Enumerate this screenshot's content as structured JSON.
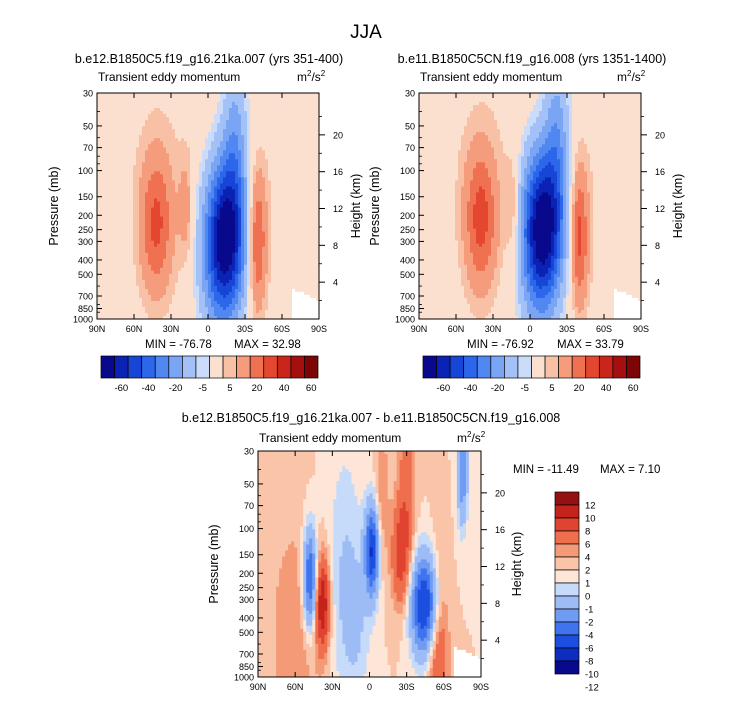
{
  "figure": {
    "title": "JJA"
  },
  "chart_data": [
    {
      "type": "heatmap",
      "title": "b.e12.B1850C5.f19_g16.21ka.007 (yrs 351-400)",
      "subtitle_left": "Transient eddy momentum",
      "units_base": "m",
      "units_exp1": "2",
      "units_mid": "/s",
      "units_exp2": "2",
      "ylabel": "Pressure (mb)",
      "ylabel_right": "Height (km)",
      "x_ticks": [
        "90N",
        "60N",
        "30N",
        "0",
        "30S",
        "60S",
        "90S"
      ],
      "y_ticks": [
        "30",
        "50",
        "70",
        "100",
        "150",
        "200",
        "250",
        "300",
        "400",
        "500",
        "700",
        "850",
        "1000"
      ],
      "y_ticks_right": [
        "20",
        "16",
        "12",
        "8",
        "4"
      ],
      "min_label": "MIN = -76.78",
      "max_label": "MAX = 32.98",
      "min": -76.78,
      "max": 32.98,
      "blobs": [
        {
          "lat": -14,
          "p": 290,
          "amp": -75,
          "slat": 11,
          "sp": 0.85
        },
        {
          "lat": -22,
          "p": 70,
          "amp": -22,
          "slat": 7,
          "sp": 1.1
        },
        {
          "lat": -5,
          "p": 500,
          "amp": -10,
          "slat": 10,
          "sp": 1.0
        },
        {
          "lat": 42,
          "p": 230,
          "amp": 30,
          "slat": 9,
          "sp": 0.75
        },
        {
          "lat": -40,
          "p": 300,
          "amp": 32,
          "slat": 5,
          "sp": 0.75
        },
        {
          "lat": 18,
          "p": 180,
          "amp": 12,
          "slat": 4,
          "sp": 0.55
        },
        {
          "lat": 35,
          "p": 100,
          "amp": 4,
          "slat": 30,
          "sp": 1.6
        },
        {
          "lat": -60,
          "p": 150,
          "amp": 4,
          "slat": 15,
          "sp": 1.4
        },
        {
          "lat": 75,
          "p": 250,
          "amp": -3,
          "slat": 4,
          "sp": 0.6
        },
        {
          "lat": 6,
          "p": 250,
          "amp": -2,
          "slat": 5,
          "sp": 1.0
        }
      ],
      "colorbar_labels": [
        "-60",
        "-40",
        "-20",
        "-5",
        "5",
        "20",
        "40",
        "60"
      ]
    },
    {
      "type": "heatmap",
      "title": "b.e11.B1850C5CN.f19_g16.008 (yrs 1351-1400)",
      "subtitle_left": "Transient eddy momentum",
      "units_base": "m",
      "units_exp1": "2",
      "units_mid": "/s",
      "units_exp2": "2",
      "ylabel": "Pressure (mb)",
      "ylabel_right": "Height (km)",
      "x_ticks": [
        "90N",
        "60N",
        "30N",
        "0",
        "30S",
        "60S",
        "90S"
      ],
      "y_ticks": [
        "30",
        "50",
        "70",
        "100",
        "150",
        "200",
        "250",
        "300",
        "400",
        "500",
        "700",
        "850",
        "1000"
      ],
      "y_ticks_right": [
        "20",
        "16",
        "12",
        "8",
        "4"
      ],
      "min_label": "MIN = -76.92",
      "max_label": "MAX = 33.79",
      "min": -76.92,
      "max": 33.79,
      "blobs": [
        {
          "lat": -10,
          "p": 240,
          "amp": -76,
          "slat": 11,
          "sp": 0.85
        },
        {
          "lat": -22,
          "p": 70,
          "amp": -24,
          "slat": 7,
          "sp": 1.1
        },
        {
          "lat": -5,
          "p": 500,
          "amp": -10,
          "slat": 10,
          "sp": 1.0
        },
        {
          "lat": 40,
          "p": 210,
          "amp": 32,
          "slat": 9,
          "sp": 0.75
        },
        {
          "lat": -40,
          "p": 280,
          "amp": 33,
          "slat": 5,
          "sp": 0.75
        },
        {
          "lat": 14,
          "p": 180,
          "amp": 12,
          "slat": 4,
          "sp": 0.55
        },
        {
          "lat": 35,
          "p": 100,
          "amp": 4,
          "slat": 30,
          "sp": 1.6
        },
        {
          "lat": -60,
          "p": 150,
          "amp": 4,
          "slat": 15,
          "sp": 1.4
        },
        {
          "lat": 75,
          "p": 250,
          "amp": -3,
          "slat": 4,
          "sp": 0.6
        },
        {
          "lat": 6,
          "p": 250,
          "amp": -2,
          "slat": 5,
          "sp": 1.0
        }
      ],
      "colorbar_labels": [
        "-60",
        "-40",
        "-20",
        "-5",
        "5",
        "20",
        "40",
        "60"
      ]
    },
    {
      "type": "heatmap",
      "title": "b.e12.B1850C5.f19_g16.21ka.007 - b.e11.B1850C5CN.f19_g16.008",
      "subtitle_left": "Transient eddy momentum",
      "units_base": "m",
      "units_exp1": "2",
      "units_mid": "/s",
      "units_exp2": "2",
      "ylabel": "Pressure (mb)",
      "ylabel_right": "Height (km)",
      "x_ticks": [
        "90N",
        "60N",
        "30N",
        "0",
        "30S",
        "60S",
        "90S"
      ],
      "y_ticks": [
        "30",
        "50",
        "70",
        "100",
        "150",
        "200",
        "250",
        "300",
        "400",
        "500",
        "700",
        "850",
        "1000"
      ],
      "y_ticks_right": [
        "20",
        "16",
        "12",
        "8",
        "4"
      ],
      "min_label": "MIN = -11.49",
      "max_label": "MAX =  7.10",
      "min": -11.49,
      "max": 7.1,
      "blobs": [
        {
          "lat": 48,
          "p": 220,
          "amp": -9,
          "slat": 4,
          "sp": 0.55
        },
        {
          "lat": 38,
          "p": 320,
          "amp": 8,
          "slat": 4,
          "sp": 0.5
        },
        {
          "lat": -2,
          "p": 140,
          "amp": -10,
          "slat": 4,
          "sp": 0.5
        },
        {
          "lat": -45,
          "p": 330,
          "amp": -11,
          "slat": 8,
          "sp": 0.55
        },
        {
          "lat": -25,
          "p": 150,
          "amp": 5,
          "slat": 5,
          "sp": 0.55
        },
        {
          "lat": -55,
          "p": 550,
          "amp": 5,
          "slat": 6,
          "sp": 0.9
        },
        {
          "lat": -75,
          "p": 40,
          "amp": -6,
          "slat": 3,
          "sp": 0.6
        },
        {
          "lat": -30,
          "p": 50,
          "amp": 3,
          "slat": 5,
          "sp": 1.0
        },
        {
          "lat": 60,
          "p": 500,
          "amp": 2,
          "slat": 14,
          "sp": 1.2
        },
        {
          "lat": 20,
          "p": 200,
          "amp": -2,
          "slat": 10,
          "sp": 1.4
        },
        {
          "lat": 10,
          "p": 450,
          "amp": -1.5,
          "slat": 8,
          "sp": 0.8
        },
        {
          "lat": -10,
          "p": 60,
          "amp": 2,
          "slat": 4,
          "sp": 0.8
        }
      ],
      "colorbar_labels": [
        "12",
        "10",
        "8",
        "6",
        "4",
        "2",
        "1",
        "0",
        "-1",
        "-2",
        "-4",
        "-6",
        "-8",
        "-10",
        "-12"
      ]
    }
  ],
  "colormaps": {
    "full": [
      "#08098c",
      "#0b23b4",
      "#1745d6",
      "#2c66ea",
      "#5187f0",
      "#7aa5f4",
      "#a3c1f7",
      "#cadcf9",
      "#fbe0d0",
      "#f8c1a5",
      "#f49c7c",
      "#ef7151",
      "#e4472f",
      "#c9251a",
      "#a50f0f",
      "#7e0506"
    ],
    "diff": [
      "#08098c",
      "#0d2cc0",
      "#1c4fe0",
      "#3f74ee",
      "#6f9bf3",
      "#9dbcf6",
      "#c6daf9",
      "#fde6d8",
      "#f9c4a8",
      "#f49a76",
      "#ee6e4d",
      "#e04330",
      "#c4231b",
      "#951010"
    ]
  }
}
